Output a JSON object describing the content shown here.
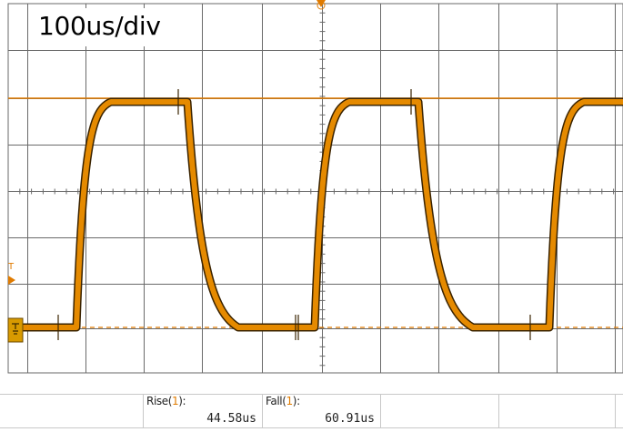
{
  "screen": {
    "timebase_label": "100us/div",
    "colors": {
      "trace": "#e58a00",
      "trace_dark": "#3a2300",
      "grid": "#6a6a6a",
      "reference_line": "#e07b00",
      "background": "#ffffff"
    },
    "icons": {
      "ground_marker": "channel-1-ground-marker-icon",
      "trigger_level_marker": "trigger-level-marker-icon",
      "trigger_position_marker": "trigger-position-marker-icon"
    },
    "trigger_marker_letter": "T"
  },
  "measurements": [
    {
      "name": "Rise",
      "channel": "1",
      "value": "44.58us"
    },
    {
      "name": "Fall",
      "channel": "1",
      "value": "60.91us"
    }
  ]
}
